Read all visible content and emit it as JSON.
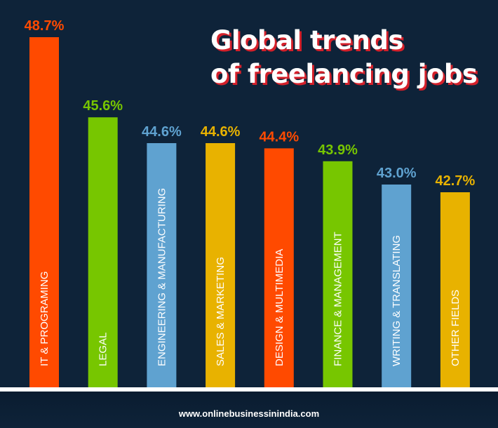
{
  "title": {
    "line1": "Global trends",
    "line2": "of freelancing jobs"
  },
  "footer": {
    "url": "www.onlinebusinessinindia.com"
  },
  "chart_data": {
    "type": "bar",
    "title": "Global trends of freelancing jobs",
    "xlabel": "",
    "ylabel": "",
    "categories": [
      "IT & PROGRAMING",
      "LEGAL",
      "ENGINEERING & MANUFACTURING",
      "SALES & MARKETING",
      "DESIGN & MULTIMEDIA",
      "FINANCE & MANAGEMENT",
      "WRITING & TRANSLATING",
      "OTHER FIELDS"
    ],
    "values": [
      48.7,
      45.6,
      44.6,
      44.6,
      44.4,
      43.9,
      43.0,
      42.7
    ],
    "value_labels": [
      "48.7%",
      "45.6%",
      "44.6%",
      "44.6%",
      "44.4%",
      "43.9%",
      "43.0%",
      "42.7%"
    ],
    "colors": [
      "#ff4a00",
      "#77c600",
      "#5fa2d0",
      "#e8b200",
      "#ff4a00",
      "#77c600",
      "#5fa2d0",
      "#e8b200"
    ],
    "label_colors": [
      "#ff4a00",
      "#77c600",
      "#5fa2d0",
      "#e8b200",
      "#ff4a00",
      "#77c600",
      "#5fa2d0",
      "#e8b200"
    ],
    "grid": false,
    "legend": "none"
  }
}
